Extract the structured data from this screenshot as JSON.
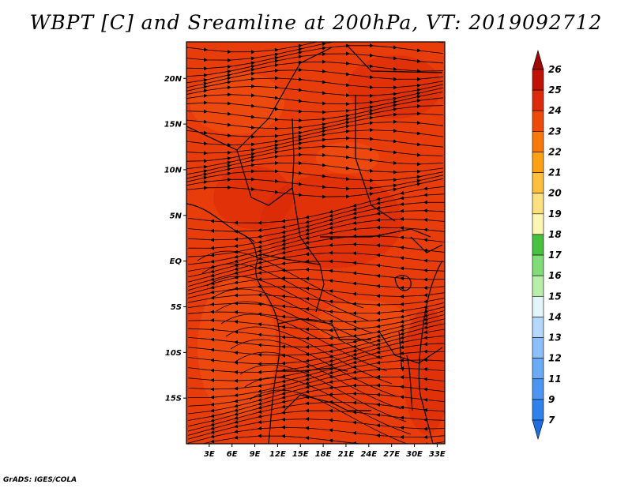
{
  "title": "WBPT [C] and Sreamline at 200hPa, VT: 2019092712",
  "credit": "GrADS: IGES/COLA",
  "map": {
    "lon_range": [
      0,
      34
    ],
    "lat_range": [
      -20,
      24
    ],
    "lon_labels": [
      {
        "lon": 3,
        "text": "3E"
      },
      {
        "lon": 6,
        "text": "6E"
      },
      {
        "lon": 9,
        "text": "9E"
      },
      {
        "lon": 12,
        "text": "12E"
      },
      {
        "lon": 15,
        "text": "15E"
      },
      {
        "lon": 18,
        "text": "18E"
      },
      {
        "lon": 21,
        "text": "21E"
      },
      {
        "lon": 24,
        "text": "24E"
      },
      {
        "lon": 27,
        "text": "27E"
      },
      {
        "lon": 30,
        "text": "30E"
      },
      {
        "lon": 33,
        "text": "33E"
      }
    ],
    "lat_labels": [
      {
        "lat": 20,
        "text": "20N"
      },
      {
        "lat": 15,
        "text": "15N"
      },
      {
        "lat": 10,
        "text": "10N"
      },
      {
        "lat": 5,
        "text": "5N"
      },
      {
        "lat": 0,
        "text": "EQ"
      },
      {
        "lat": -5,
        "text": "5S"
      },
      {
        "lat": -10,
        "text": "10S"
      },
      {
        "lat": -15,
        "text": "15S"
      }
    ],
    "field_colors": {
      "background": "#e83c0a",
      "warmer": "#d82808",
      "cooler": "#f05414"
    }
  },
  "colorbar": {
    "levels": [
      "7",
      "9",
      "11",
      "12",
      "13",
      "14",
      "15",
      "16",
      "17",
      "18",
      "19",
      "20",
      "21",
      "22",
      "23",
      "24",
      "25",
      "26"
    ],
    "colors": [
      "#1e6ee0",
      "#2e82ee",
      "#4a96f2",
      "#6aaaf6",
      "#8cc0fa",
      "#b4d8fc",
      "#e2f6fa",
      "#b6eeaa",
      "#82dc78",
      "#46c23e",
      "#fcf6b4",
      "#fce080",
      "#fcc03c",
      "#fca014",
      "#f8780a",
      "#f04a0a",
      "#dc2a0a",
      "#c01208",
      "#a00806"
    ]
  }
}
